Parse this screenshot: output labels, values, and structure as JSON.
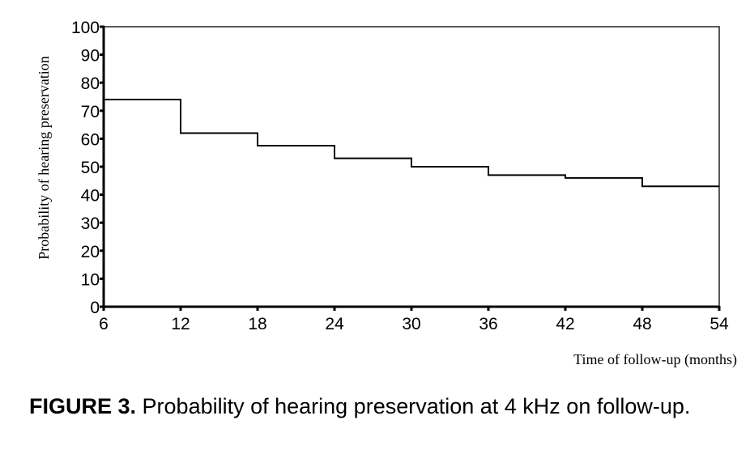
{
  "chart_data": {
    "type": "line",
    "step": true,
    "title": "",
    "xlabel": "Time of follow-up (months)",
    "ylabel": "Probability of hearing preservation",
    "xlim": [
      6,
      54
    ],
    "ylim": [
      0,
      100
    ],
    "x_ticks": [
      6,
      12,
      18,
      24,
      30,
      36,
      42,
      48,
      54
    ],
    "y_ticks": [
      0,
      10,
      20,
      30,
      40,
      50,
      60,
      70,
      80,
      90,
      100
    ],
    "grid": false,
    "series": [
      {
        "x": [
          6,
          12,
          18,
          24,
          30,
          36,
          42,
          48,
          54
        ],
        "y": [
          74,
          62,
          57.5,
          53,
          50,
          47,
          46,
          43,
          43
        ]
      }
    ]
  },
  "caption": {
    "label": "FIGURE 3.",
    "text": " Probability of hearing preservation at 4 kHz on follow-up."
  }
}
